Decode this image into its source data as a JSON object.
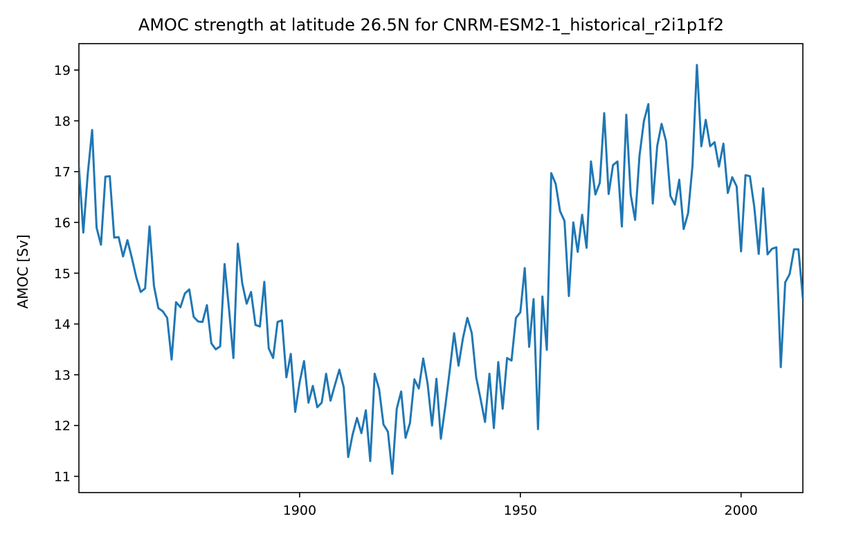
{
  "chart_data": {
    "type": "line",
    "title": "AMOC strength at latitude 26.5N for CNRM-ESM2-1_historical_r2i1p1f2",
    "xlabel": "",
    "ylabel": "AMOC [Sv]",
    "xlim": [
      1850,
      2014
    ],
    "ylim": [
      10.68,
      19.52
    ],
    "xticks": [
      1900,
      1950,
      2000
    ],
    "yticks": [
      11,
      12,
      13,
      14,
      15,
      16,
      17,
      18,
      19
    ],
    "grid": false,
    "line_color": "#1f77b4",
    "series": [
      {
        "x": [
          1850,
          1851,
          1852,
          1853,
          1854,
          1855,
          1856,
          1857,
          1858,
          1859,
          1860,
          1861,
          1862,
          1863,
          1864,
          1865,
          1866,
          1867,
          1868,
          1869,
          1870,
          1871,
          1872,
          1873,
          1874,
          1875,
          1876,
          1877,
          1878,
          1879,
          1880,
          1881,
          1882,
          1883,
          1884,
          1885,
          1886,
          1887,
          1888,
          1889,
          1890,
          1891,
          1892,
          1893,
          1894,
          1895,
          1896,
          1897,
          1898,
          1899,
          1900,
          1901,
          1902,
          1903,
          1904,
          1905,
          1906,
          1907,
          1908,
          1909,
          1910,
          1911,
          1912,
          1913,
          1914,
          1915,
          1916,
          1917,
          1918,
          1919,
          1920,
          1921,
          1922,
          1923,
          1924,
          1925,
          1926,
          1927,
          1928,
          1929,
          1930,
          1931,
          1932,
          1933,
          1934,
          1935,
          1936,
          1937,
          1938,
          1939,
          1940,
          1941,
          1942,
          1943,
          1944,
          1945,
          1946,
          1947,
          1948,
          1949,
          1950,
          1951,
          1952,
          1953,
          1954,
          1955,
          1956,
          1957,
          1958,
          1959,
          1960,
          1961,
          1962,
          1963,
          1964,
          1965,
          1966,
          1967,
          1968,
          1969,
          1970,
          1971,
          1972,
          1973,
          1974,
          1975,
          1976,
          1977,
          1978,
          1979,
          1980,
          1981,
          1982,
          1983,
          1984,
          1985,
          1986,
          1987,
          1988,
          1989,
          1990,
          1991,
          1992,
          1993,
          1994,
          1995,
          1996,
          1997,
          1998,
          1999,
          2000,
          2001,
          2002,
          2003,
          2004,
          2005,
          2006,
          2007,
          2008,
          2009,
          2010,
          2011,
          2012,
          2013,
          2014
        ],
        "values": [
          17.1,
          15.8,
          16.95,
          17.82,
          15.9,
          15.56,
          16.9,
          16.91,
          15.7,
          15.71,
          15.33,
          15.65,
          15.3,
          14.92,
          14.63,
          14.7,
          15.92,
          14.75,
          14.31,
          14.25,
          14.12,
          13.3,
          14.43,
          14.33,
          14.6,
          14.68,
          14.14,
          14.05,
          14.04,
          14.37,
          13.62,
          13.5,
          13.56,
          15.18,
          14.3,
          13.33,
          15.58,
          14.8,
          14.4,
          14.63,
          13.98,
          13.95,
          14.83,
          13.52,
          13.33,
          14.04,
          14.07,
          12.95,
          13.41,
          12.27,
          12.85,
          13.27,
          12.45,
          12.78,
          12.36,
          12.45,
          13.02,
          12.49,
          12.8,
          13.1,
          12.75,
          11.38,
          11.82,
          12.15,
          11.85,
          12.3,
          11.3,
          13.02,
          12.72,
          12.02,
          11.88,
          11.05,
          12.33,
          12.67,
          11.76,
          12.05,
          12.91,
          12.73,
          13.32,
          12.82,
          12.0,
          12.92,
          11.74,
          12.38,
          13.08,
          13.82,
          13.18,
          13.72,
          14.12,
          13.82,
          12.95,
          12.52,
          12.07,
          13.02,
          11.95,
          13.25,
          12.33,
          13.33,
          13.28,
          14.12,
          14.23,
          15.1,
          13.55,
          14.49,
          11.93,
          14.54,
          13.49,
          16.97,
          16.76,
          16.22,
          16.03,
          14.55,
          16.0,
          15.42,
          16.15,
          15.5,
          17.2,
          16.55,
          16.78,
          18.15,
          16.56,
          17.13,
          17.2,
          15.92,
          18.12,
          16.55,
          16.05,
          17.32,
          18.0,
          18.33,
          16.37,
          17.5,
          17.94,
          17.6,
          16.52,
          16.35,
          16.84,
          15.87,
          16.18,
          17.12,
          19.1,
          17.5,
          18.02,
          17.5,
          17.58,
          17.1,
          17.55,
          16.58,
          16.89,
          16.71,
          15.43,
          16.93,
          16.91,
          16.3,
          15.38,
          16.67,
          15.37,
          15.48,
          15.51,
          13.15,
          14.82,
          14.98,
          15.47,
          15.47,
          14.51
        ]
      }
    ]
  }
}
